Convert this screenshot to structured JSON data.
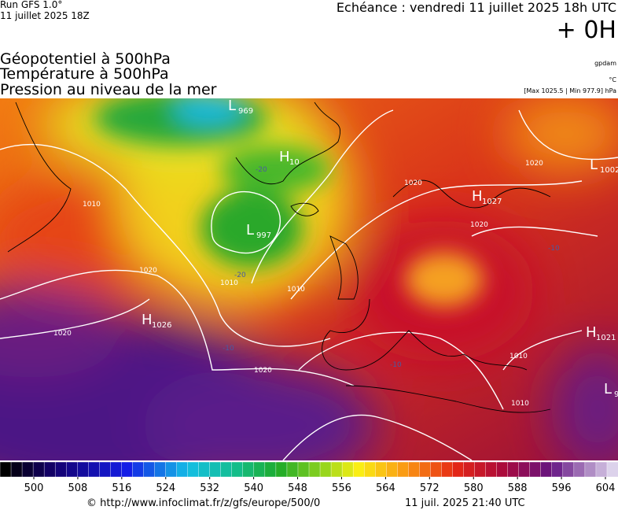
{
  "header": {
    "run": "Run GFS 1.0°",
    "run_date": "11 juillet 2025 18Z",
    "echeance": "Echéance : vendredi 11 juillet 2025 18h UTC",
    "lead": "+ 0H",
    "titles": [
      "Géopotentiel à 500hPa",
      "Température à 500hPa",
      "Pression au niveau de la mer"
    ],
    "unit_geo": "gpdam",
    "unit_temp": "°C",
    "pressure_range": "[Max 1025.5 | Min 977.9] hPa"
  },
  "centers": [
    {
      "letter": "L",
      "value": "969"
    },
    {
      "letter": "H",
      "value": "10"
    },
    {
      "letter": "L",
      "value": "997"
    },
    {
      "letter": "H",
      "value": "1026"
    },
    {
      "letter": "H",
      "value": "1027"
    },
    {
      "letter": "L",
      "value": "1002"
    },
    {
      "letter": "H",
      "value": "1021"
    },
    {
      "letter": "L",
      "value": "9"
    }
  ],
  "isobar_labels": [
    "1010",
    "1020",
    "1020",
    "1010",
    "1020",
    "1020",
    "1010",
    "1020",
    "1010",
    "1010",
    "1020"
  ],
  "temp_labels": [
    "-20",
    "-20",
    "-10",
    "-10",
    "-10"
  ],
  "colorbar": {
    "ticks": [
      500,
      508,
      516,
      524,
      532,
      540,
      548,
      556,
      564,
      572,
      580,
      588,
      596,
      604
    ]
  },
  "footer": {
    "source": "© http://www.infoclimat.fr/z/gfs/europe/500/0",
    "generated": "11 juil. 2025 21:40 UTC"
  }
}
